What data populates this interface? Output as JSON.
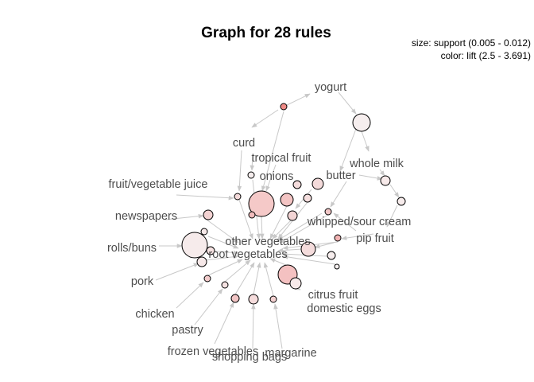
{
  "title": "Graph for 28 rules",
  "legend": {
    "size": "size: support (0.005 - 0.012)",
    "color": "color: lift (2.5 - 3.691)"
  },
  "colors": {
    "edge": "#c8c8c8",
    "label": "#4d4d4d",
    "node_low_lift": "#f5eeee",
    "node_high_lift": "#f08080"
  },
  "items": [
    "yogurt",
    "curd",
    "tropical fruit",
    "onions",
    "butter",
    "whole milk",
    "fruit/vegetable juice",
    "newspapers",
    "whipped/sour cream",
    "pip fruit",
    "rolls/buns",
    "other vegetables",
    "root vegetables",
    "pork",
    "chicken",
    "citrus fruit",
    "domestic eggs",
    "pastry",
    "frozen vegetables",
    "margarine",
    "shopping bags"
  ]
}
